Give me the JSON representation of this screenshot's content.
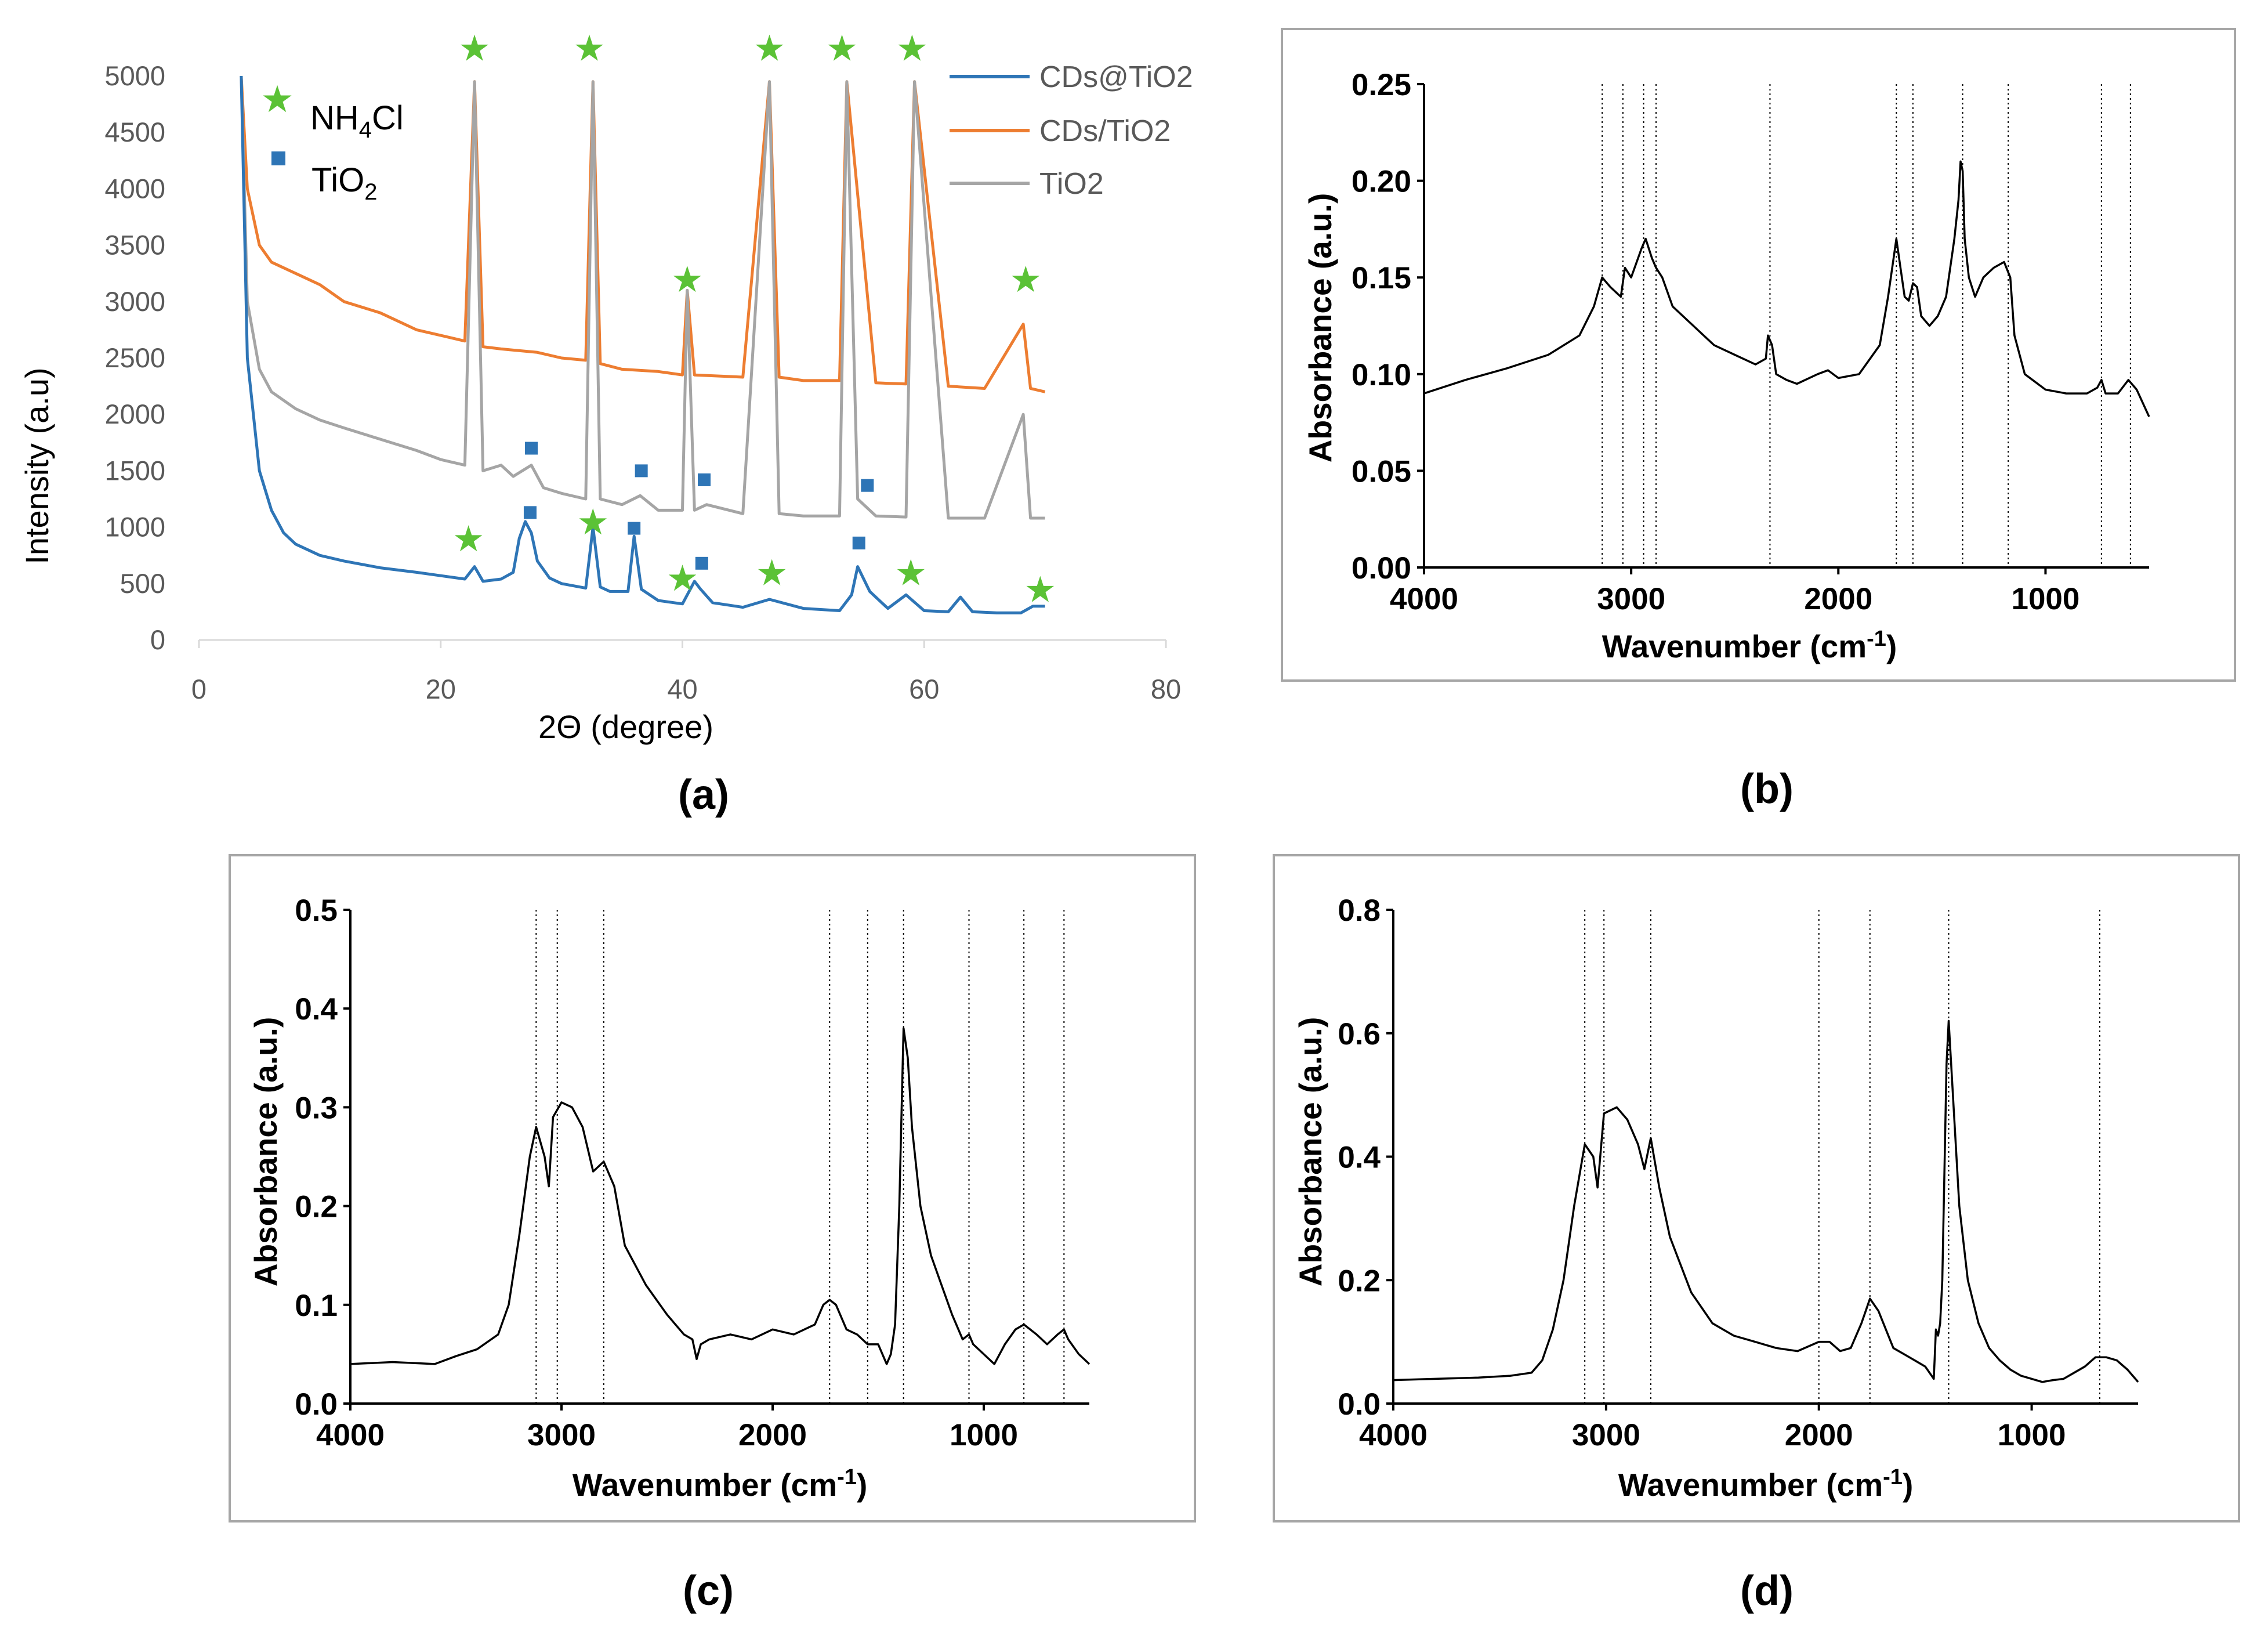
{
  "chart_data": [
    {
      "panel": "(a)",
      "type": "line",
      "xlabel": "2Θ (degree)",
      "ylabel": "Intensity (a.u)",
      "xlim": [
        0,
        80
      ],
      "ylim": [
        0,
        5000
      ],
      "xticks": [
        0,
        20,
        40,
        60,
        80
      ],
      "yticks": [
        0,
        500,
        1000,
        1500,
        2000,
        2500,
        3000,
        3500,
        4000,
        4500,
        5000
      ],
      "grid": false,
      "legend_position": "top-right",
      "series": [
        {
          "name": "CDs@TiO2",
          "color": "#2E75B6",
          "x": [
            3.5,
            4,
            5,
            6,
            7,
            8,
            10,
            12,
            15,
            18,
            20,
            22,
            22.8,
            23.5,
            25,
            26,
            26.5,
            27,
            27.5,
            28,
            29,
            30,
            32,
            32.6,
            33.2,
            34,
            35.5,
            36,
            36.6,
            38,
            40,
            41,
            41.5,
            42.5,
            45,
            47.2,
            50,
            53,
            54,
            54.5,
            55.5,
            57,
            58.5,
            60,
            62,
            63,
            64,
            66,
            68,
            69,
            70
          ],
          "values": [
            5000,
            2500,
            1500,
            1150,
            950,
            850,
            750,
            700,
            640,
            600,
            570,
            540,
            650,
            520,
            540,
            600,
            900,
            1050,
            950,
            700,
            550,
            500,
            460,
            1000,
            470,
            430,
            430,
            920,
            450,
            350,
            320,
            520,
            450,
            330,
            290,
            360,
            280,
            260,
            400,
            650,
            430,
            280,
            400,
            260,
            250,
            380,
            250,
            240,
            240,
            300,
            300
          ]
        },
        {
          "name": "CDs/TiO2",
          "color": "#ED7D31",
          "x": [
            3.5,
            4,
            5,
            6,
            8,
            10,
            12,
            15,
            18,
            20,
            22,
            22.8,
            23.5,
            25,
            28,
            30,
            32,
            32.6,
            33.2,
            35,
            38,
            40,
            40.4,
            41,
            45,
            47.2,
            48,
            50,
            53,
            53.6,
            56,
            58.5,
            59.2,
            62,
            65,
            68.2,
            68.8,
            70
          ],
          "values": [
            5000,
            4000,
            3500,
            3350,
            3250,
            3150,
            3000,
            2900,
            2750,
            2700,
            2650,
            4950,
            2600,
            2580,
            2550,
            2500,
            2480,
            4950,
            2450,
            2400,
            2380,
            2350,
            3100,
            2350,
            2330,
            4950,
            2330,
            2300,
            2300,
            4950,
            2280,
            2270,
            4950,
            2250,
            2230,
            2800,
            2230,
            2200
          ]
        },
        {
          "name": "TiO2",
          "color": "#A5A5A5",
          "x": [
            3.5,
            4,
            5,
            6,
            8,
            10,
            12,
            15,
            18,
            20,
            22,
            22.8,
            23.5,
            25,
            26,
            27.5,
            28.5,
            30,
            32,
            32.6,
            33.2,
            35,
            36.5,
            38,
            40,
            40.4,
            41,
            42,
            45,
            47.2,
            48,
            50,
            53,
            53.6,
            54.5,
            56,
            58.5,
            59.2,
            62,
            65,
            68.2,
            68.8,
            70
          ],
          "values": [
            5000,
            3000,
            2400,
            2200,
            2050,
            1950,
            1880,
            1780,
            1680,
            1600,
            1550,
            4950,
            1500,
            1550,
            1450,
            1550,
            1350,
            1300,
            1250,
            4950,
            1250,
            1200,
            1280,
            1150,
            1150,
            3100,
            1150,
            1200,
            1120,
            4950,
            1120,
            1100,
            1100,
            4950,
            1250,
            1100,
            1090,
            4950,
            1080,
            1080,
            2000,
            1080,
            1080
          ]
        }
      ],
      "legend_markers": [
        {
          "symbol": "★",
          "color": "#5BC236",
          "label_main": "NH",
          "label_sub": "4",
          "label_end": "Cl"
        },
        {
          "symbol": "■",
          "color": "#2E75B6",
          "label_main": "TiO",
          "label_sub": "2",
          "label_end": ""
        }
      ],
      "star_markers": [
        {
          "x": 22.8,
          "y": 5250
        },
        {
          "x": 32.3,
          "y": 5250
        },
        {
          "x": 47.2,
          "y": 5250
        },
        {
          "x": 53.2,
          "y": 5250
        },
        {
          "x": 59,
          "y": 5250
        },
        {
          "x": 40.4,
          "y": 3200
        },
        {
          "x": 68.4,
          "y": 3200
        },
        {
          "x": 22.3,
          "y": 900
        },
        {
          "x": 32.6,
          "y": 1050
        },
        {
          "x": 40,
          "y": 550
        },
        {
          "x": 47.4,
          "y": 600
        },
        {
          "x": 58.9,
          "y": 600
        },
        {
          "x": 69.6,
          "y": 450
        }
      ],
      "square_markers": [
        {
          "x": 27.5,
          "y": 1700
        },
        {
          "x": 36.6,
          "y": 1500
        },
        {
          "x": 41.8,
          "y": 1420
        },
        {
          "x": 55.3,
          "y": 1370
        },
        {
          "x": 27.4,
          "y": 1130
        },
        {
          "x": 36,
          "y": 990
        },
        {
          "x": 41.6,
          "y": 680
        },
        {
          "x": 54.6,
          "y": 860
        }
      ]
    },
    {
      "panel": "(b)",
      "type": "line",
      "xlabel": "Wavenumber (cm-1)",
      "ylabel": "Absorbance (a.u.)",
      "xlim": [
        4000,
        500
      ],
      "ylim": [
        0,
        0.25
      ],
      "xticks": [
        4000,
        3000,
        2000,
        1000
      ],
      "yticks": [
        0.0,
        0.05,
        0.1,
        0.15,
        0.2,
        0.25
      ],
      "ytick_labels": [
        "0.00",
        "0.05",
        "0.10",
        "0.15",
        "0.20",
        "0.25"
      ],
      "grid": false,
      "dotted_lines": [
        3140,
        3040,
        2940,
        2880,
        2330,
        1720,
        1640,
        1400,
        1180,
        730,
        590
      ],
      "series": [
        {
          "name": "",
          "color": "#000000",
          "x": [
            4000,
            3800,
            3600,
            3400,
            3250,
            3180,
            3140,
            3100,
            3050,
            3030,
            3000,
            2950,
            2930,
            2900,
            2880,
            2850,
            2800,
            2700,
            2600,
            2500,
            2400,
            2350,
            2340,
            2320,
            2300,
            2250,
            2200,
            2100,
            2050,
            2000,
            1900,
            1800,
            1760,
            1720,
            1700,
            1680,
            1660,
            1640,
            1620,
            1600,
            1560,
            1520,
            1480,
            1440,
            1420,
            1410,
            1400,
            1390,
            1370,
            1340,
            1300,
            1250,
            1200,
            1170,
            1150,
            1100,
            1000,
            900,
            800,
            750,
            730,
            710,
            650,
            600,
            560,
            500
          ],
          "values": [
            0.09,
            0.097,
            0.103,
            0.11,
            0.12,
            0.135,
            0.15,
            0.145,
            0.14,
            0.155,
            0.15,
            0.165,
            0.17,
            0.16,
            0.155,
            0.15,
            0.135,
            0.125,
            0.115,
            0.11,
            0.105,
            0.108,
            0.12,
            0.115,
            0.1,
            0.097,
            0.095,
            0.1,
            0.102,
            0.098,
            0.1,
            0.115,
            0.14,
            0.17,
            0.155,
            0.14,
            0.138,
            0.147,
            0.145,
            0.13,
            0.125,
            0.13,
            0.14,
            0.17,
            0.19,
            0.21,
            0.205,
            0.17,
            0.15,
            0.14,
            0.15,
            0.155,
            0.158,
            0.15,
            0.12,
            0.1,
            0.092,
            0.09,
            0.09,
            0.093,
            0.097,
            0.09,
            0.09,
            0.097,
            0.092,
            0.078
          ]
        }
      ]
    },
    {
      "panel": "(c)",
      "type": "line",
      "xlabel": "Wavenumber (cm-1)",
      "ylabel": "Absorbance (a.u.)",
      "xlim": [
        4000,
        500
      ],
      "ylim": [
        0,
        0.5
      ],
      "xticks": [
        4000,
        3000,
        2000,
        1000
      ],
      "yticks": [
        0.0,
        0.1,
        0.2,
        0.3,
        0.4,
        0.5
      ],
      "ytick_labels": [
        "0.0",
        "0.1",
        "0.2",
        "0.3",
        "0.4",
        "0.5"
      ],
      "grid": false,
      "dotted_lines": [
        3120,
        3020,
        2800,
        1730,
        1550,
        1380,
        1070,
        810,
        620
      ],
      "series": [
        {
          "name": "",
          "color": "#000000",
          "x": [
            4000,
            3800,
            3600,
            3500,
            3400,
            3300,
            3250,
            3200,
            3150,
            3120,
            3080,
            3060,
            3040,
            3000,
            2950,
            2900,
            2850,
            2800,
            2750,
            2700,
            2600,
            2500,
            2420,
            2380,
            2360,
            2340,
            2300,
            2200,
            2100,
            2000,
            1900,
            1800,
            1760,
            1730,
            1700,
            1650,
            1600,
            1550,
            1500,
            1460,
            1440,
            1420,
            1400,
            1380,
            1360,
            1340,
            1300,
            1250,
            1200,
            1150,
            1100,
            1070,
            1050,
            1000,
            950,
            900,
            850,
            810,
            780,
            750,
            700,
            650,
            620,
            600,
            550,
            500
          ],
          "values": [
            0.04,
            0.042,
            0.04,
            0.048,
            0.055,
            0.07,
            0.1,
            0.17,
            0.25,
            0.28,
            0.25,
            0.22,
            0.29,
            0.305,
            0.3,
            0.28,
            0.235,
            0.245,
            0.22,
            0.16,
            0.12,
            0.09,
            0.07,
            0.065,
            0.045,
            0.06,
            0.065,
            0.07,
            0.065,
            0.075,
            0.07,
            0.08,
            0.1,
            0.105,
            0.1,
            0.075,
            0.07,
            0.06,
            0.06,
            0.04,
            0.05,
            0.08,
            0.2,
            0.38,
            0.35,
            0.28,
            0.2,
            0.15,
            0.12,
            0.09,
            0.065,
            0.07,
            0.06,
            0.05,
            0.04,
            0.06,
            0.075,
            0.08,
            0.075,
            0.07,
            0.06,
            0.07,
            0.075,
            0.065,
            0.05,
            0.04
          ]
        }
      ]
    },
    {
      "panel": "(d)",
      "type": "line",
      "xlabel": "Wavenumber (cm-1)",
      "ylabel": "Absorbance (a.u.)",
      "xlim": [
        4000,
        500
      ],
      "ylim": [
        0,
        0.8
      ],
      "xticks": [
        4000,
        3000,
        2000,
        1000
      ],
      "yticks": [
        0.0,
        0.2,
        0.4,
        0.6,
        0.8
      ],
      "ytick_labels": [
        "0.0",
        "0.2",
        "0.4",
        "0.6",
        "0.8"
      ],
      "grid": false,
      "dotted_lines": [
        3100,
        3010,
        2790,
        2000,
        1760,
        1390,
        680
      ],
      "series": [
        {
          "name": "",
          "color": "#000000",
          "x": [
            4000,
            3800,
            3600,
            3450,
            3350,
            3300,
            3250,
            3200,
            3150,
            3100,
            3060,
            3040,
            3010,
            2950,
            2900,
            2850,
            2820,
            2790,
            2750,
            2700,
            2600,
            2500,
            2400,
            2300,
            2200,
            2100,
            2000,
            1950,
            1900,
            1850,
            1800,
            1760,
            1720,
            1650,
            1600,
            1550,
            1500,
            1460,
            1450,
            1440,
            1430,
            1420,
            1400,
            1390,
            1370,
            1340,
            1300,
            1250,
            1200,
            1150,
            1100,
            1050,
            1000,
            950,
            900,
            850,
            800,
            750,
            700,
            650,
            600,
            550,
            500
          ],
          "values": [
            0.038,
            0.04,
            0.042,
            0.045,
            0.05,
            0.07,
            0.12,
            0.2,
            0.32,
            0.42,
            0.4,
            0.35,
            0.47,
            0.48,
            0.46,
            0.42,
            0.38,
            0.43,
            0.35,
            0.27,
            0.18,
            0.13,
            0.11,
            0.1,
            0.09,
            0.085,
            0.1,
            0.1,
            0.085,
            0.09,
            0.13,
            0.17,
            0.15,
            0.09,
            0.08,
            0.07,
            0.06,
            0.04,
            0.12,
            0.11,
            0.13,
            0.2,
            0.55,
            0.62,
            0.5,
            0.32,
            0.2,
            0.13,
            0.09,
            0.07,
            0.055,
            0.045,
            0.04,
            0.035,
            0.038,
            0.04,
            0.05,
            0.06,
            0.075,
            0.075,
            0.07,
            0.055,
            0.035
          ]
        }
      ]
    }
  ]
}
